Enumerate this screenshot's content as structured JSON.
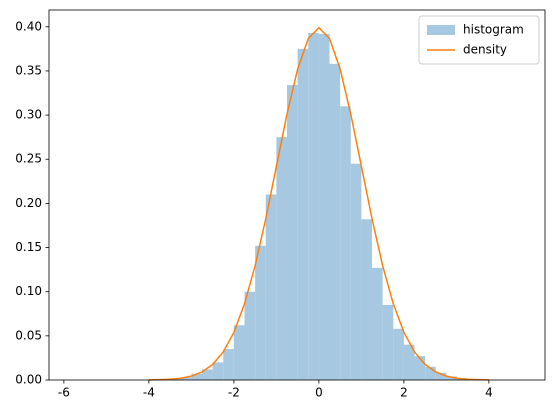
{
  "chart_data": {
    "type": "histogram",
    "name": "histogram",
    "color": "#a6c8e0",
    "bins": [
      -3.5,
      -3.25,
      -3.0,
      -2.75,
      -2.5,
      -2.25,
      -2.0,
      -1.75,
      -1.5,
      -1.25,
      -1.0,
      -0.75,
      -0.5,
      -0.25,
      0.0,
      0.25,
      0.5,
      0.75,
      1.0,
      1.25,
      1.5,
      1.75,
      2.0,
      2.25,
      2.5,
      2.75,
      3.0,
      3.25,
      3.5
    ],
    "values": [
      0.001,
      0.003,
      0.007,
      0.012,
      0.02,
      0.035,
      0.062,
      0.1,
      0.152,
      0.21,
      0.275,
      0.334,
      0.375,
      0.393,
      0.392,
      0.358,
      0.31,
      0.245,
      0.182,
      0.127,
      0.085,
      0.058,
      0.04,
      0.027,
      0.015,
      0.008,
      0.004,
      0.002
    ],
    "overlay": {
      "type": "line",
      "name": "density",
      "color": "#ff7f0e",
      "x": [
        -4.0,
        -3.75,
        -3.5,
        -3.25,
        -3.0,
        -2.75,
        -2.5,
        -2.25,
        -2.0,
        -1.75,
        -1.5,
        -1.25,
        -1.0,
        -0.75,
        -0.5,
        -0.25,
        0.0,
        0.25,
        0.5,
        0.75,
        1.0,
        1.25,
        1.5,
        1.75,
        2.0,
        2.25,
        2.5,
        2.75,
        3.0,
        3.25,
        3.5,
        3.75,
        4.0
      ],
      "values": [
        0.0001,
        0.0004,
        0.0009,
        0.002,
        0.0044,
        0.0091,
        0.0175,
        0.0317,
        0.054,
        0.0863,
        0.1295,
        0.1826,
        0.242,
        0.3011,
        0.3521,
        0.3867,
        0.3989,
        0.3867,
        0.3521,
        0.3011,
        0.242,
        0.1826,
        0.1295,
        0.0863,
        0.054,
        0.0317,
        0.0175,
        0.0091,
        0.0044,
        0.002,
        0.0009,
        0.0004,
        0.0001
      ]
    },
    "xlim": [
      -6.35,
      5.32
    ],
    "xticks": [
      -6,
      -4,
      -2,
      0,
      2,
      4
    ],
    "ylim": [
      0,
      0.419
    ],
    "yticks": [
      {
        "value": 0,
        "label": "0.00"
      },
      {
        "value": 0.05,
        "label": "0.05"
      },
      {
        "value": 0.1,
        "label": "0.10"
      },
      {
        "value": 0.15,
        "label": "0.15"
      },
      {
        "value": 0.2,
        "label": "0.20"
      },
      {
        "value": 0.25,
        "label": "0.25"
      },
      {
        "value": 0.3,
        "label": "0.30"
      },
      {
        "value": 0.35,
        "label": "0.35"
      },
      {
        "value": 0.4,
        "label": "0.40"
      }
    ],
    "grid": false,
    "legend": "upper right"
  }
}
